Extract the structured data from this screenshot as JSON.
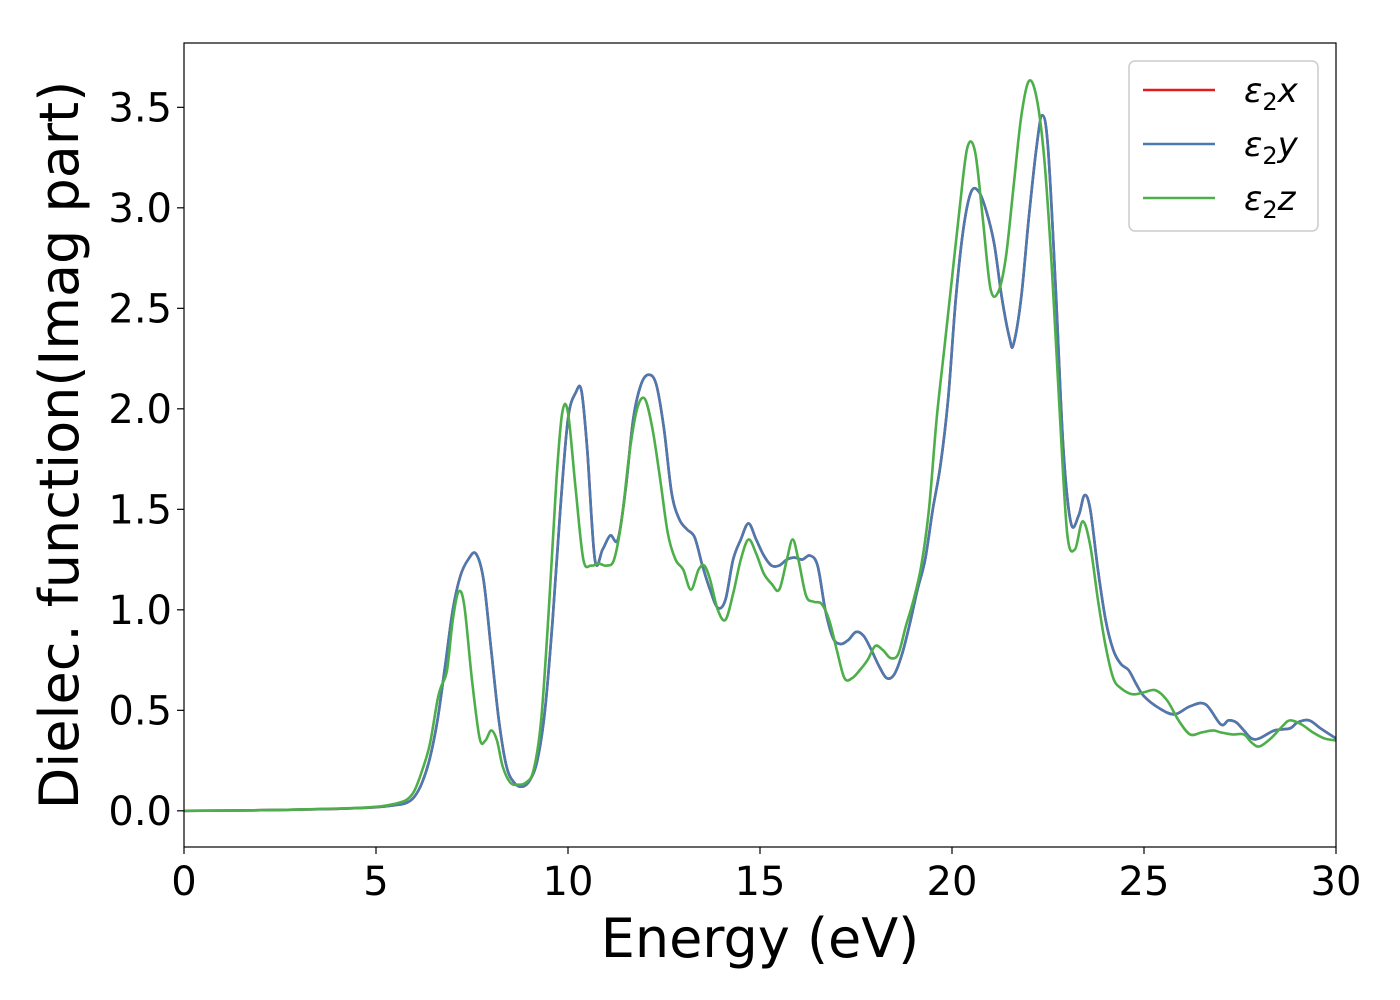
{
  "chart_data": {
    "type": "line",
    "xlabel": "Energy (eV)",
    "ylabel": "Dielec. function(Imag part)",
    "xlim": [
      0,
      30
    ],
    "ylim": [
      -0.18,
      3.82
    ],
    "xticks": [
      "0",
      "5",
      "10",
      "15",
      "20",
      "25",
      "30"
    ],
    "yticks": [
      "0.0",
      "0.5",
      "1.0",
      "1.5",
      "2.0",
      "2.5",
      "3.0",
      "3.5"
    ],
    "grid": false,
    "legend_position": "top-right",
    "series": [
      {
        "name": "ε₂x",
        "legend": {
          "base": "ε",
          "sub": "2",
          "suffix": "x"
        },
        "color": "#e41a1c",
        "x": [
          0,
          2,
          4,
          5,
          5.5,
          5.8,
          6.0,
          6.2,
          6.4,
          6.6,
          6.8,
          7.0,
          7.2,
          7.4,
          7.6,
          7.8,
          8.0,
          8.2,
          8.4,
          8.6,
          8.8,
          9.0,
          9.2,
          9.4,
          9.6,
          9.8,
          10.0,
          10.2,
          10.35,
          10.5,
          10.7,
          10.9,
          11.1,
          11.3,
          11.5,
          11.7,
          11.9,
          12.1,
          12.3,
          12.5,
          12.7,
          12.9,
          13.1,
          13.3,
          13.5,
          13.7,
          13.9,
          14.1,
          14.3,
          14.5,
          14.7,
          14.9,
          15.1,
          15.3,
          15.5,
          15.7,
          15.9,
          16.1,
          16.3,
          16.5,
          16.7,
          16.9,
          17.1,
          17.3,
          17.5,
          17.7,
          17.9,
          18.1,
          18.3,
          18.5,
          18.7,
          18.9,
          19.1,
          19.3,
          19.5,
          19.7,
          19.9,
          20.1,
          20.3,
          20.5,
          20.7,
          20.9,
          21.1,
          21.3,
          21.5,
          21.6,
          21.8,
          22.0,
          22.2,
          22.35,
          22.5,
          22.7,
          22.9,
          23.1,
          23.3,
          23.45,
          23.6,
          23.8,
          24.0,
          24.2,
          24.4,
          24.6,
          24.8,
          25.0,
          25.4,
          25.8,
          26.2,
          26.6,
          27.0,
          27.2,
          27.4,
          27.6,
          27.8,
          28.0,
          28.4,
          28.8,
          29.0,
          29.3,
          29.6,
          30.0
        ],
        "y": [
          0,
          0.003,
          0.01,
          0.018,
          0.028,
          0.04,
          0.07,
          0.14,
          0.26,
          0.45,
          0.72,
          1.0,
          1.17,
          1.25,
          1.28,
          1.15,
          0.8,
          0.45,
          0.22,
          0.14,
          0.12,
          0.15,
          0.25,
          0.5,
          0.95,
          1.5,
          1.95,
          2.08,
          2.09,
          1.8,
          1.25,
          1.3,
          1.37,
          1.35,
          1.6,
          1.95,
          2.12,
          2.17,
          2.12,
          1.9,
          1.58,
          1.45,
          1.4,
          1.36,
          1.22,
          1.1,
          1.01,
          1.05,
          1.25,
          1.35,
          1.43,
          1.35,
          1.27,
          1.22,
          1.22,
          1.25,
          1.26,
          1.25,
          1.27,
          1.22,
          1.0,
          0.86,
          0.83,
          0.85,
          0.89,
          0.87,
          0.8,
          0.72,
          0.66,
          0.68,
          0.78,
          0.93,
          1.1,
          1.25,
          1.5,
          1.72,
          2.05,
          2.55,
          2.9,
          3.08,
          3.08,
          2.98,
          2.82,
          2.55,
          2.35,
          2.32,
          2.55,
          2.95,
          3.3,
          3.46,
          3.3,
          2.6,
          1.8,
          1.43,
          1.47,
          1.57,
          1.5,
          1.2,
          0.95,
          0.8,
          0.73,
          0.7,
          0.63,
          0.57,
          0.51,
          0.48,
          0.52,
          0.53,
          0.43,
          0.45,
          0.44,
          0.4,
          0.36,
          0.36,
          0.4,
          0.41,
          0.44,
          0.45,
          0.41,
          0.36
        ]
      },
      {
        "name": "ε₂y",
        "legend": {
          "base": "ε",
          "sub": "2",
          "suffix": "y"
        },
        "color": "#4a7aaf",
        "x": [
          0,
          2,
          4,
          5,
          5.5,
          5.8,
          6.0,
          6.2,
          6.4,
          6.6,
          6.8,
          7.0,
          7.2,
          7.4,
          7.6,
          7.8,
          8.0,
          8.2,
          8.4,
          8.6,
          8.8,
          9.0,
          9.2,
          9.4,
          9.6,
          9.8,
          10.0,
          10.2,
          10.35,
          10.5,
          10.7,
          10.9,
          11.1,
          11.3,
          11.5,
          11.7,
          11.9,
          12.1,
          12.3,
          12.5,
          12.7,
          12.9,
          13.1,
          13.3,
          13.5,
          13.7,
          13.9,
          14.1,
          14.3,
          14.5,
          14.7,
          14.9,
          15.1,
          15.3,
          15.5,
          15.7,
          15.9,
          16.1,
          16.3,
          16.5,
          16.7,
          16.9,
          17.1,
          17.3,
          17.5,
          17.7,
          17.9,
          18.1,
          18.3,
          18.5,
          18.7,
          18.9,
          19.1,
          19.3,
          19.5,
          19.7,
          19.9,
          20.1,
          20.3,
          20.5,
          20.7,
          20.9,
          21.1,
          21.3,
          21.5,
          21.6,
          21.8,
          22.0,
          22.2,
          22.35,
          22.5,
          22.7,
          22.9,
          23.1,
          23.3,
          23.45,
          23.6,
          23.8,
          24.0,
          24.2,
          24.4,
          24.6,
          24.8,
          25.0,
          25.4,
          25.8,
          26.2,
          26.6,
          27.0,
          27.2,
          27.4,
          27.6,
          27.8,
          28.0,
          28.4,
          28.8,
          29.0,
          29.3,
          29.6,
          30.0
        ],
        "y": [
          0,
          0.003,
          0.01,
          0.018,
          0.028,
          0.04,
          0.07,
          0.14,
          0.26,
          0.45,
          0.72,
          1.0,
          1.17,
          1.25,
          1.28,
          1.15,
          0.8,
          0.45,
          0.22,
          0.14,
          0.12,
          0.15,
          0.25,
          0.5,
          0.95,
          1.5,
          1.95,
          2.08,
          2.09,
          1.8,
          1.25,
          1.3,
          1.37,
          1.35,
          1.6,
          1.95,
          2.12,
          2.17,
          2.12,
          1.9,
          1.58,
          1.45,
          1.4,
          1.36,
          1.22,
          1.1,
          1.01,
          1.05,
          1.25,
          1.35,
          1.43,
          1.35,
          1.27,
          1.22,
          1.22,
          1.25,
          1.26,
          1.25,
          1.27,
          1.22,
          1.0,
          0.86,
          0.83,
          0.85,
          0.89,
          0.87,
          0.8,
          0.72,
          0.66,
          0.68,
          0.78,
          0.93,
          1.1,
          1.25,
          1.5,
          1.72,
          2.05,
          2.55,
          2.9,
          3.08,
          3.08,
          2.98,
          2.82,
          2.55,
          2.35,
          2.32,
          2.55,
          2.95,
          3.3,
          3.46,
          3.3,
          2.6,
          1.8,
          1.43,
          1.47,
          1.57,
          1.5,
          1.2,
          0.95,
          0.8,
          0.73,
          0.7,
          0.63,
          0.57,
          0.51,
          0.48,
          0.52,
          0.53,
          0.43,
          0.45,
          0.44,
          0.4,
          0.36,
          0.36,
          0.4,
          0.41,
          0.44,
          0.45,
          0.41,
          0.36
        ]
      },
      {
        "name": "ε₂z",
        "legend": {
          "base": "ε",
          "sub": "2",
          "suffix": "z"
        },
        "color": "#4daf4a",
        "x": [
          0,
          2,
          4,
          5,
          5.5,
          5.8,
          6.0,
          6.2,
          6.4,
          6.6,
          6.7,
          6.85,
          7.0,
          7.15,
          7.3,
          7.5,
          7.7,
          7.85,
          8.0,
          8.15,
          8.3,
          8.5,
          8.7,
          8.9,
          9.1,
          9.3,
          9.5,
          9.7,
          9.85,
          10.0,
          10.2,
          10.4,
          10.6,
          10.8,
          11.0,
          11.2,
          11.4,
          11.6,
          11.8,
          12.0,
          12.2,
          12.4,
          12.6,
          12.8,
          13.0,
          13.2,
          13.4,
          13.55,
          13.7,
          13.9,
          14.1,
          14.3,
          14.5,
          14.7,
          14.9,
          15.1,
          15.3,
          15.5,
          15.7,
          15.85,
          16.0,
          16.2,
          16.4,
          16.6,
          16.8,
          17.0,
          17.2,
          17.4,
          17.6,
          17.8,
          18.0,
          18.2,
          18.4,
          18.6,
          18.8,
          19.0,
          19.2,
          19.4,
          19.6,
          19.8,
          20.0,
          20.2,
          20.4,
          20.6,
          20.8,
          21.0,
          21.2,
          21.4,
          21.6,
          21.8,
          22.0,
          22.2,
          22.4,
          22.6,
          22.8,
          23.0,
          23.2,
          23.4,
          23.6,
          23.8,
          24.0,
          24.2,
          24.4,
          24.7,
          25.0,
          25.3,
          25.6,
          25.9,
          26.2,
          26.5,
          26.8,
          27.0,
          27.3,
          27.6,
          27.8,
          28.0,
          28.3,
          28.6,
          28.8,
          29.1,
          29.4,
          29.7,
          30.0
        ],
        "y": [
          0,
          0.003,
          0.011,
          0.02,
          0.035,
          0.055,
          0.1,
          0.2,
          0.33,
          0.55,
          0.62,
          0.7,
          0.95,
          1.09,
          1.02,
          0.65,
          0.36,
          0.35,
          0.4,
          0.35,
          0.22,
          0.14,
          0.13,
          0.14,
          0.2,
          0.45,
          1.0,
          1.65,
          1.98,
          1.98,
          1.6,
          1.25,
          1.22,
          1.23,
          1.22,
          1.25,
          1.45,
          1.78,
          2.0,
          2.05,
          1.9,
          1.65,
          1.38,
          1.25,
          1.2,
          1.1,
          1.2,
          1.22,
          1.15,
          1.0,
          0.95,
          1.08,
          1.25,
          1.35,
          1.28,
          1.18,
          1.13,
          1.1,
          1.25,
          1.35,
          1.25,
          1.07,
          1.04,
          1.03,
          0.95,
          0.8,
          0.66,
          0.66,
          0.7,
          0.75,
          0.82,
          0.8,
          0.76,
          0.78,
          0.92,
          1.05,
          1.22,
          1.5,
          1.95,
          2.3,
          2.65,
          3.0,
          3.3,
          3.28,
          2.95,
          2.6,
          2.58,
          2.75,
          3.1,
          3.45,
          3.63,
          3.55,
          3.25,
          2.7,
          2.0,
          1.38,
          1.3,
          1.44,
          1.32,
          1.05,
          0.82,
          0.66,
          0.61,
          0.58,
          0.59,
          0.6,
          0.55,
          0.45,
          0.38,
          0.39,
          0.4,
          0.39,
          0.38,
          0.38,
          0.34,
          0.32,
          0.36,
          0.42,
          0.45,
          0.43,
          0.39,
          0.36,
          0.35
        ]
      }
    ]
  }
}
